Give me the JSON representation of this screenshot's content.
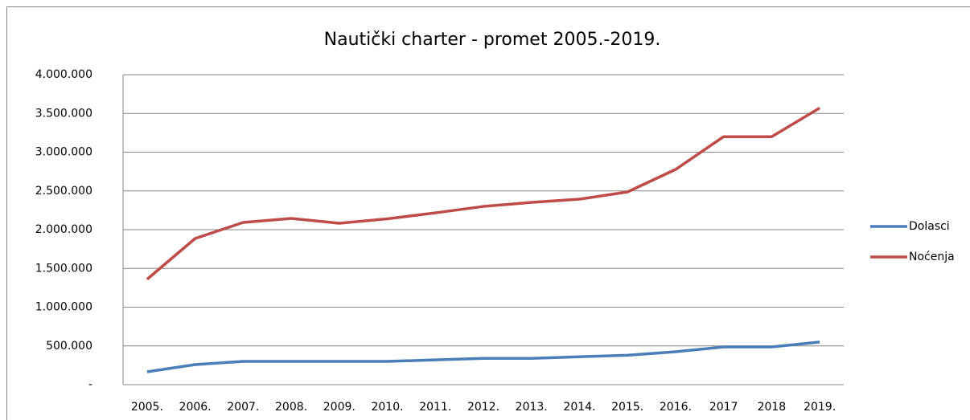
{
  "chart_data": {
    "type": "line",
    "title": "Nautički charter - promet 2005.-2019.",
    "categories": [
      "2005.",
      "2006.",
      "2007.",
      "2008.",
      "2009.",
      "2010.",
      "2011.",
      "2012.",
      "2013.",
      "2014.",
      "2015.",
      "2016.",
      "2017",
      "2018",
      "2019."
    ],
    "series": [
      {
        "name": "Dolasci",
        "color": "#4a7ebb",
        "values": [
          166000,
          259000,
          300000,
          300000,
          300000,
          300000,
          320000,
          340000,
          340000,
          360000,
          380000,
          425000,
          487000,
          487000,
          550000
        ]
      },
      {
        "name": "Noćenja",
        "color": "#be4b48",
        "values": [
          1360000,
          1886000,
          2093000,
          2145000,
          2083000,
          2140000,
          2217000,
          2300000,
          2352000,
          2394000,
          2487000,
          2777000,
          3200000,
          3200000,
          3570000
        ]
      }
    ],
    "ylim": [
      0,
      4000000
    ],
    "yticks": [
      {
        "value": 0,
        "label": "-"
      },
      {
        "value": 500000,
        "label": "500.000"
      },
      {
        "value": 1000000,
        "label": "1.000.000"
      },
      {
        "value": 1500000,
        "label": "1.500.000"
      },
      {
        "value": 2000000,
        "label": "2.000.000"
      },
      {
        "value": 2500000,
        "label": "2.500.000"
      },
      {
        "value": 3000000,
        "label": "3.000.000"
      },
      {
        "value": 3500000,
        "label": "3.500.000"
      },
      {
        "value": 4000000,
        "label": "4.000.000"
      }
    ],
    "grid": true,
    "legend": "right"
  }
}
